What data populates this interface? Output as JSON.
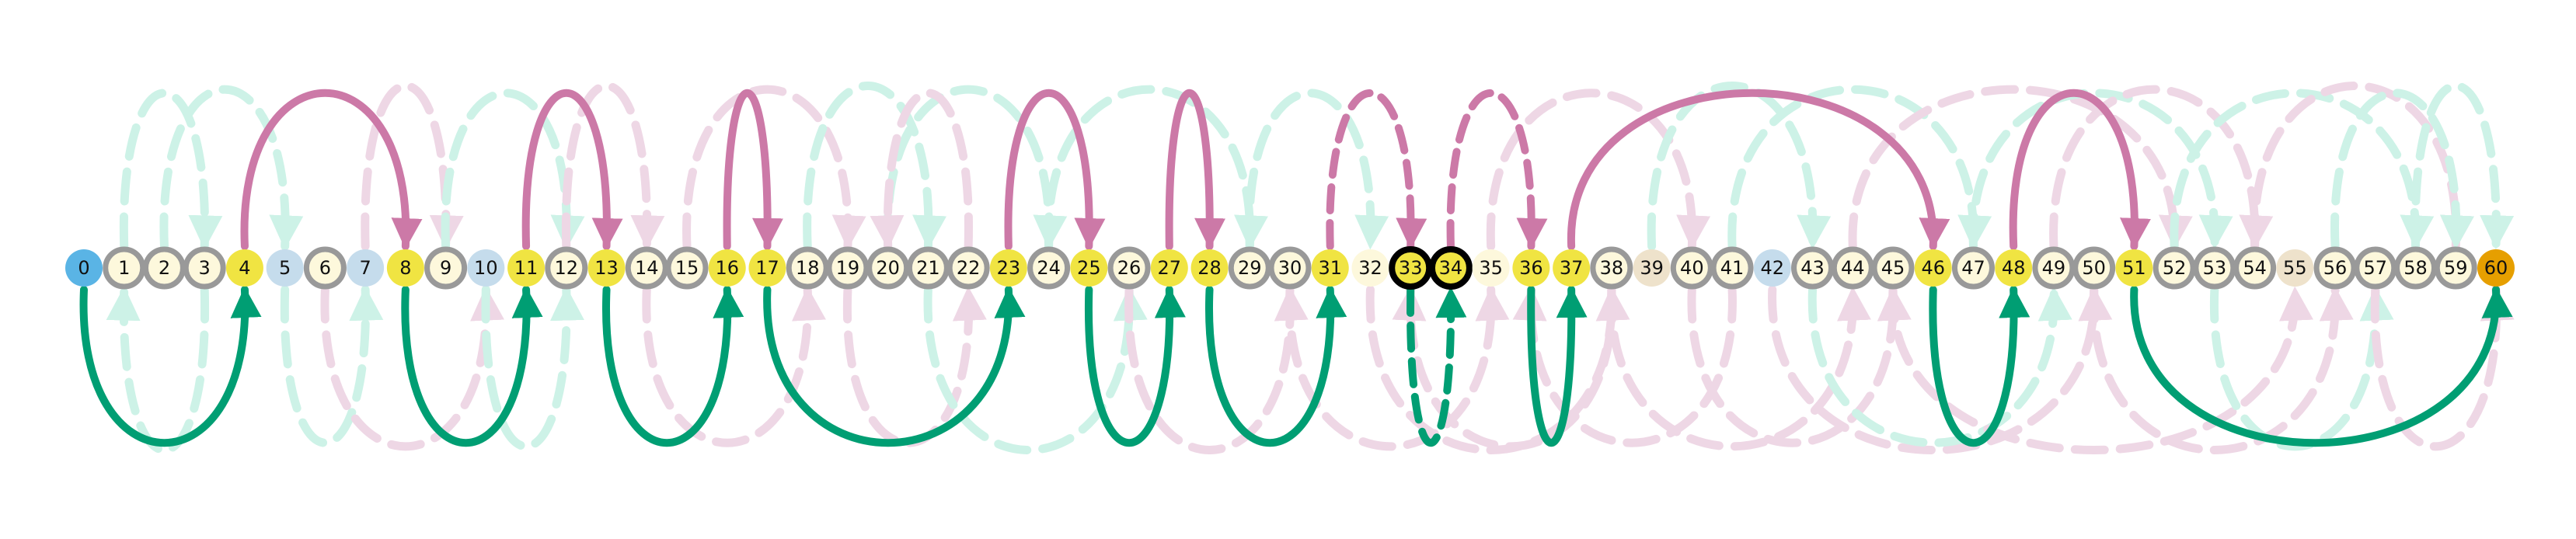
{
  "diagram": {
    "node_count": 61,
    "node_labels": [
      "0",
      "1",
      "2",
      "3",
      "4",
      "5",
      "6",
      "7",
      "8",
      "9",
      "10",
      "11",
      "12",
      "13",
      "14",
      "15",
      "16",
      "17",
      "18",
      "19",
      "20",
      "21",
      "22",
      "23",
      "24",
      "25",
      "26",
      "27",
      "28",
      "29",
      "30",
      "31",
      "32",
      "33",
      "34",
      "35",
      "36",
      "37",
      "38",
      "39",
      "40",
      "41",
      "42",
      "43",
      "44",
      "45",
      "46",
      "47",
      "48",
      "49",
      "50",
      "51",
      "52",
      "53",
      "54",
      "55",
      "56",
      "57",
      "58",
      "59",
      "60"
    ],
    "colors": {
      "start": "#5AB4E5",
      "end": "#E69F00",
      "highlight": "#F0E442",
      "neutral": "#FDF8DC",
      "blue_light": "#C5DCEC",
      "tan_light": "#EEE2CB",
      "ring_gray": "#999999",
      "ring_black": "#000000",
      "arc_pink": "#CC79A7",
      "arc_green": "#009E73",
      "faint_pink": "#EED7E5",
      "faint_green": "#CDF2E7"
    },
    "node_styles": {
      "start": [
        0
      ],
      "end": [
        60
      ],
      "highlight": [
        4,
        8,
        11,
        13,
        16,
        17,
        23,
        25,
        27,
        28,
        31,
        33,
        34,
        36,
        37,
        46,
        48,
        51
      ],
      "blue_light": [
        5,
        7,
        10,
        42
      ],
      "tan_light": [
        39,
        55
      ],
      "black_ring": [
        33,
        34
      ],
      "no_ring": [
        0,
        4,
        5,
        7,
        8,
        10,
        11,
        13,
        16,
        17,
        23,
        25,
        27,
        28,
        31,
        32,
        35,
        36,
        37,
        39,
        42,
        46,
        48,
        51,
        55,
        60
      ]
    },
    "main_arcs": [
      {
        "from": 0,
        "to": 4,
        "side": "below",
        "color": "green",
        "dashed": false,
        "depth": 0.85
      },
      {
        "from": 4,
        "to": 8,
        "side": "above",
        "color": "pink",
        "dashed": false,
        "depth": 0.85
      },
      {
        "from": 8,
        "to": 11,
        "side": "below",
        "color": "green",
        "dashed": false,
        "depth": 0.85
      },
      {
        "from": 11,
        "to": 13,
        "side": "above",
        "color": "pink",
        "dashed": false,
        "depth": 0.85
      },
      {
        "from": 13,
        "to": 16,
        "side": "below",
        "color": "green",
        "dashed": false,
        "depth": 0.85
      },
      {
        "from": 16,
        "to": 17,
        "side": "above",
        "color": "pink",
        "dashed": false,
        "depth": 0.85
      },
      {
        "from": 17,
        "to": 23,
        "side": "below",
        "color": "green",
        "dashed": false,
        "depth": 0.85
      },
      {
        "from": 23,
        "to": 25,
        "side": "above",
        "color": "pink",
        "dashed": false,
        "depth": 0.85
      },
      {
        "from": 25,
        "to": 27,
        "side": "below",
        "color": "green",
        "dashed": false,
        "depth": 0.85
      },
      {
        "from": 27,
        "to": 28,
        "side": "above",
        "color": "pink",
        "dashed": false,
        "depth": 0.85
      },
      {
        "from": 28,
        "to": 31,
        "side": "below",
        "color": "green",
        "dashed": false,
        "depth": 0.85
      },
      {
        "from": 31,
        "to": 33,
        "side": "above",
        "color": "pink",
        "dashed": true,
        "depth": 0.85
      },
      {
        "from": 33,
        "to": 34,
        "side": "below",
        "color": "green",
        "dashed": true,
        "depth": 0.85
      },
      {
        "from": 34,
        "to": 36,
        "side": "above",
        "color": "pink",
        "dashed": true,
        "depth": 0.85
      },
      {
        "from": 36,
        "to": 37,
        "side": "below",
        "color": "green",
        "dashed": false,
        "depth": 0.85
      },
      {
        "from": 37,
        "to": 46,
        "side": "above",
        "color": "pink",
        "dashed": false,
        "depth": 0.85
      },
      {
        "from": 46,
        "to": 48,
        "side": "below",
        "color": "green",
        "dashed": false,
        "depth": 0.85
      },
      {
        "from": 48,
        "to": 51,
        "side": "above",
        "color": "pink",
        "dashed": false,
        "depth": 0.85
      },
      {
        "from": 51,
        "to": 60,
        "side": "below",
        "color": "green",
        "dashed": false,
        "depth": 0.85
      }
    ],
    "faint_arcs": [
      {
        "from": 1,
        "to": 3,
        "side": "above",
        "color": "green"
      },
      {
        "from": 2,
        "to": 5,
        "side": "above",
        "color": "green"
      },
      {
        "from": 3,
        "to": 1,
        "side": "below",
        "color": "green"
      },
      {
        "from": 5,
        "to": 7,
        "side": "below",
        "color": "green"
      },
      {
        "from": 6,
        "to": 10,
        "side": "below",
        "color": "pink"
      },
      {
        "from": 7,
        "to": 9,
        "side": "above",
        "color": "pink"
      },
      {
        "from": 9,
        "to": 12,
        "side": "above",
        "color": "green"
      },
      {
        "from": 10,
        "to": 12,
        "side": "below",
        "color": "green"
      },
      {
        "from": 12,
        "to": 14,
        "side": "above",
        "color": "pink"
      },
      {
        "from": 14,
        "to": 18,
        "side": "below",
        "color": "pink"
      },
      {
        "from": 15,
        "to": 19,
        "side": "above",
        "color": "pink"
      },
      {
        "from": 18,
        "to": 21,
        "side": "above",
        "color": "green"
      },
      {
        "from": 19,
        "to": 22,
        "side": "below",
        "color": "pink"
      },
      {
        "from": 20,
        "to": 24,
        "side": "above",
        "color": "green"
      },
      {
        "from": 21,
        "to": 26,
        "side": "below",
        "color": "green"
      },
      {
        "from": 22,
        "to": 20,
        "side": "above",
        "color": "pink"
      },
      {
        "from": 24,
        "to": 29,
        "side": "above",
        "color": "green"
      },
      {
        "from": 26,
        "to": 30,
        "side": "below",
        "color": "pink"
      },
      {
        "from": 29,
        "to": 32,
        "side": "above",
        "color": "green"
      },
      {
        "from": 30,
        "to": 35,
        "side": "below",
        "color": "pink"
      },
      {
        "from": 32,
        "to": 38,
        "side": "below",
        "color": "pink"
      },
      {
        "from": 35,
        "to": 40,
        "side": "above",
        "color": "pink"
      },
      {
        "from": 38,
        "to": 44,
        "side": "below",
        "color": "pink"
      },
      {
        "from": 39,
        "to": 43,
        "side": "above",
        "color": "green"
      },
      {
        "from": 40,
        "to": 45,
        "side": "below",
        "color": "pink"
      },
      {
        "from": 41,
        "to": 47,
        "side": "above",
        "color": "green"
      },
      {
        "from": 42,
        "to": 50,
        "side": "below",
        "color": "pink"
      },
      {
        "from": 43,
        "to": 49,
        "side": "below",
        "color": "green"
      },
      {
        "from": 44,
        "to": 52,
        "side": "above",
        "color": "pink"
      },
      {
        "from": 45,
        "to": 55,
        "side": "below",
        "color": "pink"
      },
      {
        "from": 47,
        "to": 53,
        "side": "above",
        "color": "green"
      },
      {
        "from": 49,
        "to": 54,
        "side": "above",
        "color": "pink"
      },
      {
        "from": 50,
        "to": 56,
        "side": "below",
        "color": "pink"
      },
      {
        "from": 52,
        "to": 58,
        "side": "above",
        "color": "green"
      },
      {
        "from": 53,
        "to": 57,
        "side": "below",
        "color": "green"
      },
      {
        "from": 54,
        "to": 59,
        "side": "above",
        "color": "pink"
      },
      {
        "from": 56,
        "to": 59,
        "side": "above",
        "color": "green"
      },
      {
        "from": 57,
        "to": 60,
        "side": "below",
        "color": "pink"
      },
      {
        "from": 58,
        "to": 60,
        "side": "above",
        "color": "green"
      },
      {
        "from": 41,
        "to": 36,
        "side": "below",
        "color": "pink"
      },
      {
        "from": 38,
        "to": 33,
        "side": "below",
        "color": "pink"
      }
    ]
  }
}
